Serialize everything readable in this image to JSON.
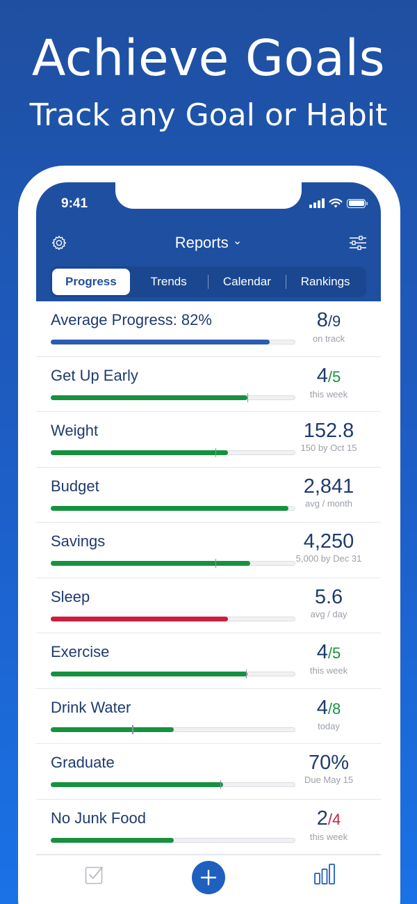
{
  "headline": "Achieve Goals",
  "subheadline": "Track any Goal or Habit",
  "status_bar": {
    "time": "9:41"
  },
  "nav": {
    "title": "Reports",
    "title_chevron": "⌄"
  },
  "tabs": [
    {
      "label": "Progress",
      "active": true
    },
    {
      "label": "Trends",
      "active": false
    },
    {
      "label": "Calendar",
      "active": false
    },
    {
      "label": "Rankings",
      "active": false
    }
  ],
  "colors": {
    "blue": "#2a5bb5",
    "green": "#17913f",
    "red": "#c8203c",
    "navy": "#1e3b6e"
  },
  "goals": [
    {
      "name": "Average Progress: 82%",
      "value": "8",
      "target": "/9",
      "target_color": "#1e3b6e",
      "sub": "on track",
      "progress": 0.89,
      "marker": null,
      "bar_color": "#2a5bb5"
    },
    {
      "name": "Get Up Early",
      "value": "4",
      "target": "/5",
      "target_color": "#17913f",
      "sub": "this week",
      "progress": 0.8,
      "marker": 0.8,
      "bar_color": "#17913f"
    },
    {
      "name": "Weight",
      "value": "152.8",
      "target": "",
      "target_color": "#1e3b6e",
      "sub": "150 by Oct 15",
      "progress": 0.72,
      "marker": 0.67,
      "bar_color": "#17913f"
    },
    {
      "name": "Budget",
      "value": "2,841",
      "target": "",
      "target_color": "#1e3b6e",
      "sub": "avg / month",
      "progress": 0.965,
      "marker": null,
      "bar_color": "#17913f"
    },
    {
      "name": "Savings",
      "value": "4,250",
      "target": "",
      "target_color": "#1e3b6e",
      "sub": "5,000 by Dec 31",
      "progress": 0.81,
      "marker": 0.67,
      "bar_color": "#17913f"
    },
    {
      "name": "Sleep",
      "value": "5.6",
      "target": "",
      "target_color": "#1e3b6e",
      "sub": "avg / day",
      "progress": 0.72,
      "marker": null,
      "bar_color": "#c8203c"
    },
    {
      "name": "Exercise",
      "value": "4",
      "target": "/5",
      "target_color": "#17913f",
      "sub": "this week",
      "progress": 0.8,
      "marker": 0.795,
      "bar_color": "#17913f"
    },
    {
      "name": "Drink Water",
      "value": "4",
      "target": "/8",
      "target_color": "#17913f",
      "sub": "today",
      "progress": 0.5,
      "marker": 0.33,
      "bar_color": "#17913f"
    },
    {
      "name": "Graduate",
      "value": "70%",
      "target": "",
      "target_color": "#1e3b6e",
      "sub": "Due May 15",
      "progress": 0.7,
      "marker": 0.69,
      "bar_color": "#17913f"
    },
    {
      "name": "No Junk Food",
      "value": "2",
      "target": "/4",
      "target_color": "#c8203c",
      "sub": "this week",
      "progress": 0.5,
      "marker": null,
      "bar_color": "#17913f"
    }
  ],
  "tabbar": {
    "left_icon": "checkbox-icon",
    "center_icon": "plus-icon",
    "right_icon": "bar-chart-icon"
  }
}
